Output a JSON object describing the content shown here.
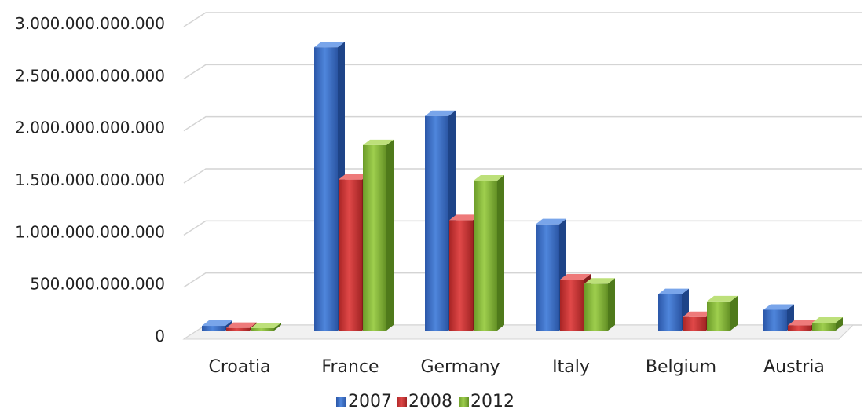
{
  "chart_data": {
    "type": "bar",
    "categories": [
      "Croatia",
      "France",
      "Germany",
      "Italy",
      "Belgium",
      "Austria"
    ],
    "series": [
      {
        "name": "2007",
        "values": [
          45000000000,
          2720000000000,
          2060000000000,
          1020000000000,
          350000000000,
          200000000000
        ]
      },
      {
        "name": "2008",
        "values": [
          25000000000,
          1450000000000,
          1060000000000,
          490000000000,
          130000000000,
          50000000000
        ]
      },
      {
        "name": "2012",
        "values": [
          20000000000,
          1780000000000,
          1440000000000,
          450000000000,
          280000000000,
          75000000000
        ]
      }
    ],
    "y_ticks": [
      {
        "value": 0,
        "label": "0"
      },
      {
        "value": 500000000000,
        "label": "500.000.000.000"
      },
      {
        "value": 1000000000000,
        "label": "1.000.000.000.000"
      },
      {
        "value": 1500000000000,
        "label": "1.500.000.000.000"
      },
      {
        "value": 2000000000000,
        "label": "2.000.000.000.000"
      },
      {
        "value": 2500000000000,
        "label": "2.500.000.000.000"
      },
      {
        "value": 3000000000000,
        "label": "3.000.000.000.000"
      }
    ],
    "ylim": [
      0,
      3000000000000
    ],
    "title": "",
    "xlabel": "",
    "ylabel": "",
    "grid": true,
    "legend_position": "bottom",
    "colors": {
      "2007": "#3a6fc4",
      "2008": "#cc3333",
      "2012": "#86b83a"
    }
  }
}
